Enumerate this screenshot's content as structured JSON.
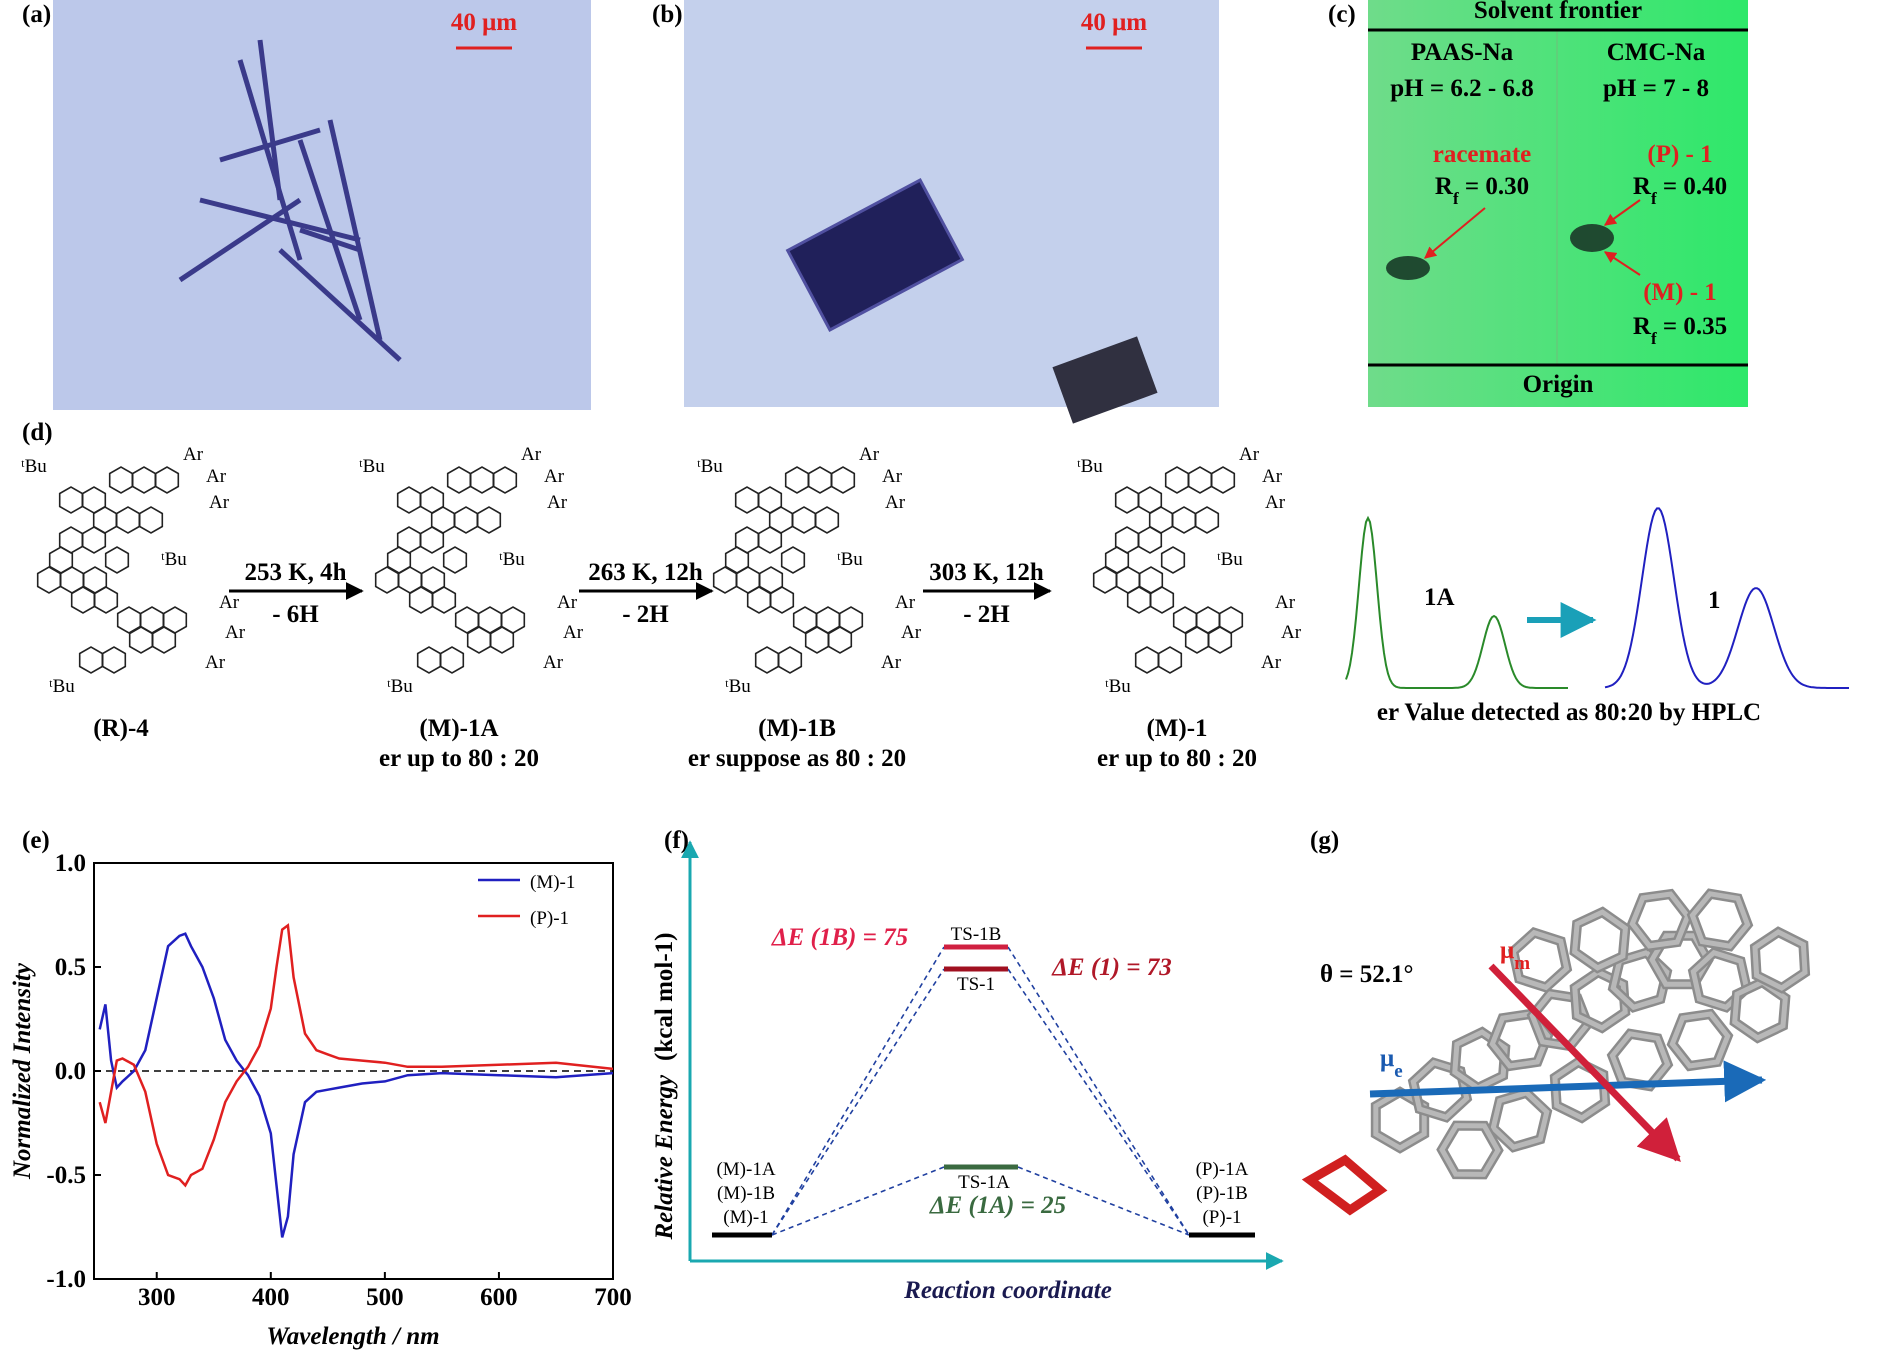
{
  "panels": {
    "a": {
      "label": "(a)",
      "scale_bar": "40 μm"
    },
    "b": {
      "label": "(b)",
      "scale_bar": "40 μm"
    },
    "c": {
      "label": "(c)",
      "top": "Solvent frontier",
      "bottom": "Origin",
      "lanes": [
        {
          "name": "PAAS-Na",
          "ph": "pH = 6.2 - 6.8"
        },
        {
          "name": "CMC-Na",
          "ph": "pH = 7 - 8"
        }
      ],
      "spots": [
        {
          "name": "racemate",
          "rf_symbol": "R",
          "rf_sub": "f",
          "rf_text": " = 0.30"
        },
        {
          "name": "(P) - 1",
          "rf_symbol": "R",
          "rf_sub": "f",
          "rf_text": " = 0.40"
        },
        {
          "name": "(M) - 1",
          "rf_symbol": "R",
          "rf_sub": "f",
          "rf_text": " = 0.35"
        }
      ]
    },
    "d": {
      "label": "(d)",
      "compounds": [
        {
          "name": "(R)-4"
        },
        {
          "name": "(M)-1A",
          "er": "er up to 80 : 20"
        },
        {
          "name": "(M)-1B",
          "er": "er suppose as 80 : 20"
        },
        {
          "name": "(M)-1",
          "er": "er up to 80 : 20"
        }
      ],
      "steps": [
        {
          "conditions": "253 K, 4h",
          "loss": "- 6H"
        },
        {
          "conditions": "263 K, 12h",
          "loss": "- 2H"
        },
        {
          "conditions": "303 K, 12h",
          "loss": "- 2H"
        }
      ],
      "substituents": {
        "ar": "Ar",
        "tbu": "ᵗBu"
      },
      "hplc": {
        "before": "1A",
        "after": "1",
        "caption": "er Value detected as 80:20 by HPLC"
      }
    },
    "e": {
      "label": "(e)"
    },
    "f": {
      "label": "(f)",
      "y_label": "Relative Energy",
      "y_unit": "(kcal mol-1)",
      "x_label": "Reaction coordinate",
      "left": [
        "(M)-1A",
        "(M)-1B",
        "(M)-1"
      ],
      "right": [
        "(P)-1A",
        "(P)-1B",
        "(P)-1"
      ],
      "ts": [
        "TS-1B",
        "TS-1",
        "TS-1A"
      ],
      "barriers": [
        "ΔE (1B) = 75",
        "ΔE (1) = 73",
        "ΔE (1A) = 25"
      ]
    },
    "g": {
      "label": "(g)",
      "angle": "θ = 52.1°",
      "mu": "μ",
      "mu_m": "m",
      "mu_e": "e"
    }
  },
  "chart_data": {
    "type": "line",
    "y_label": "Normalized Intensity",
    "x_label": "Wavelength / nm",
    "x": [
      250,
      255,
      260,
      265,
      270,
      280,
      290,
      300,
      310,
      320,
      325,
      330,
      340,
      350,
      360,
      370,
      380,
      390,
      400,
      405,
      410,
      415,
      420,
      430,
      440,
      450,
      460,
      480,
      500,
      520,
      550,
      600,
      650,
      700
    ],
    "series": [
      {
        "name": "(M)-1",
        "color": "#2020c0",
        "values": [
          0.2,
          0.32,
          0.05,
          -0.08,
          -0.05,
          0.0,
          0.1,
          0.35,
          0.6,
          0.65,
          0.66,
          0.6,
          0.5,
          0.35,
          0.15,
          0.05,
          -0.02,
          -0.12,
          -0.3,
          -0.55,
          -0.8,
          -0.7,
          -0.4,
          -0.15,
          -0.1,
          -0.09,
          -0.08,
          -0.06,
          -0.05,
          -0.02,
          -0.01,
          -0.02,
          -0.03,
          -0.01
        ]
      },
      {
        "name": "(P)-1",
        "color": "#e02020",
        "values": [
          -0.15,
          -0.25,
          -0.1,
          0.05,
          0.06,
          0.03,
          -0.1,
          -0.35,
          -0.5,
          -0.52,
          -0.55,
          -0.5,
          -0.47,
          -0.33,
          -0.15,
          -0.05,
          0.02,
          0.12,
          0.3,
          0.5,
          0.68,
          0.7,
          0.45,
          0.18,
          0.1,
          0.08,
          0.06,
          0.05,
          0.04,
          0.02,
          0.02,
          0.03,
          0.04,
          0.01
        ]
      }
    ],
    "xlim": [
      245,
      700
    ],
    "xticks": [
      300,
      400,
      500,
      600,
      700
    ],
    "ylim": [
      -1,
      1
    ],
    "yticks": [
      {
        "value": -1,
        "label": "-1.0"
      },
      -0.5,
      {
        "value": 0,
        "label": "0.0"
      },
      0.5,
      {
        "value": 1,
        "label": "1.0"
      }
    ]
  }
}
